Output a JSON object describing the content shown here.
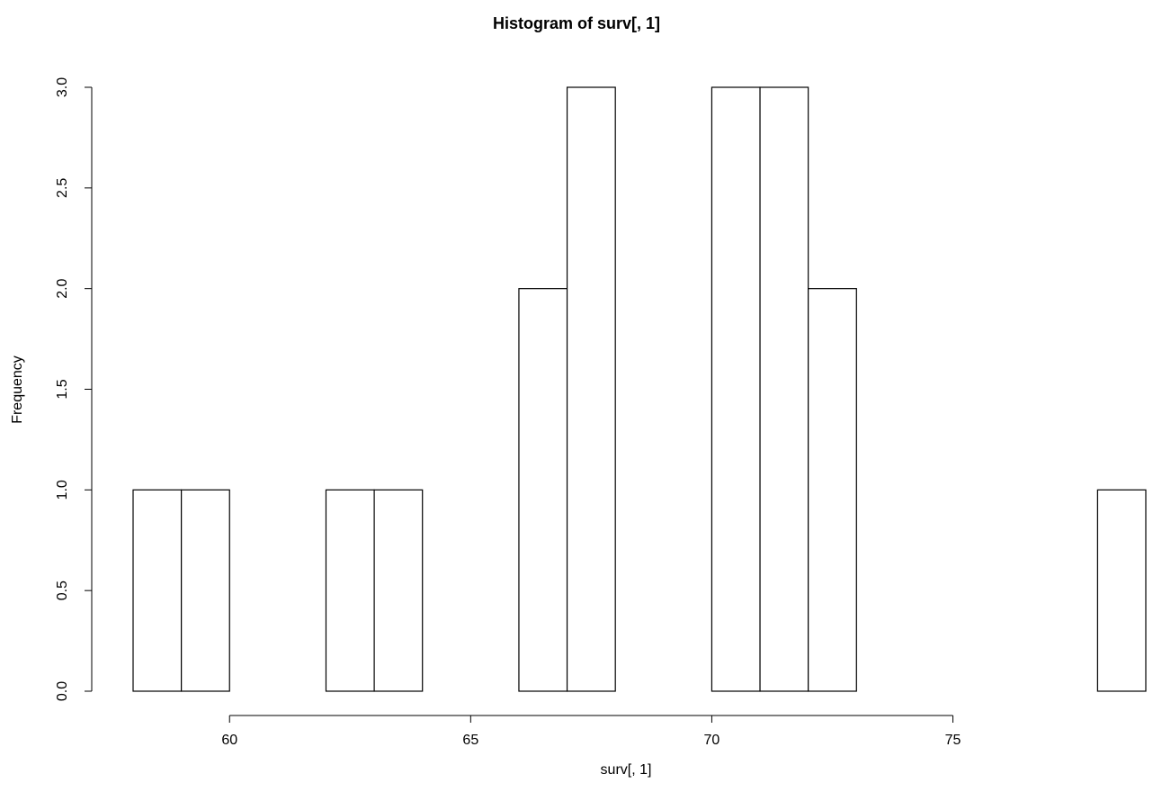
{
  "chart_data": {
    "type": "bar",
    "title": "Histogram of surv[, 1]",
    "xlabel": "surv[, 1]",
    "ylabel": "Frequency",
    "xlim": [
      58,
      79
    ],
    "ylim": [
      0,
      3
    ],
    "x_ticks": [
      "60",
      "65",
      "70",
      "75"
    ],
    "y_ticks": [
      "0.0",
      "0.5",
      "1.0",
      "1.5",
      "2.0",
      "2.5",
      "3.0"
    ],
    "bin_edges": [
      58,
      59,
      60,
      61,
      62,
      63,
      64,
      65,
      66,
      67,
      68,
      69,
      70,
      71,
      72,
      73,
      74,
      75,
      76,
      77,
      78,
      79
    ],
    "counts": [
      1,
      1,
      0,
      0,
      1,
      1,
      0,
      0,
      2,
      3,
      0,
      0,
      3,
      3,
      2,
      0,
      0,
      0,
      0,
      0,
      1
    ],
    "colors": {
      "fill": "#ffffff",
      "stroke": "#000000"
    }
  }
}
